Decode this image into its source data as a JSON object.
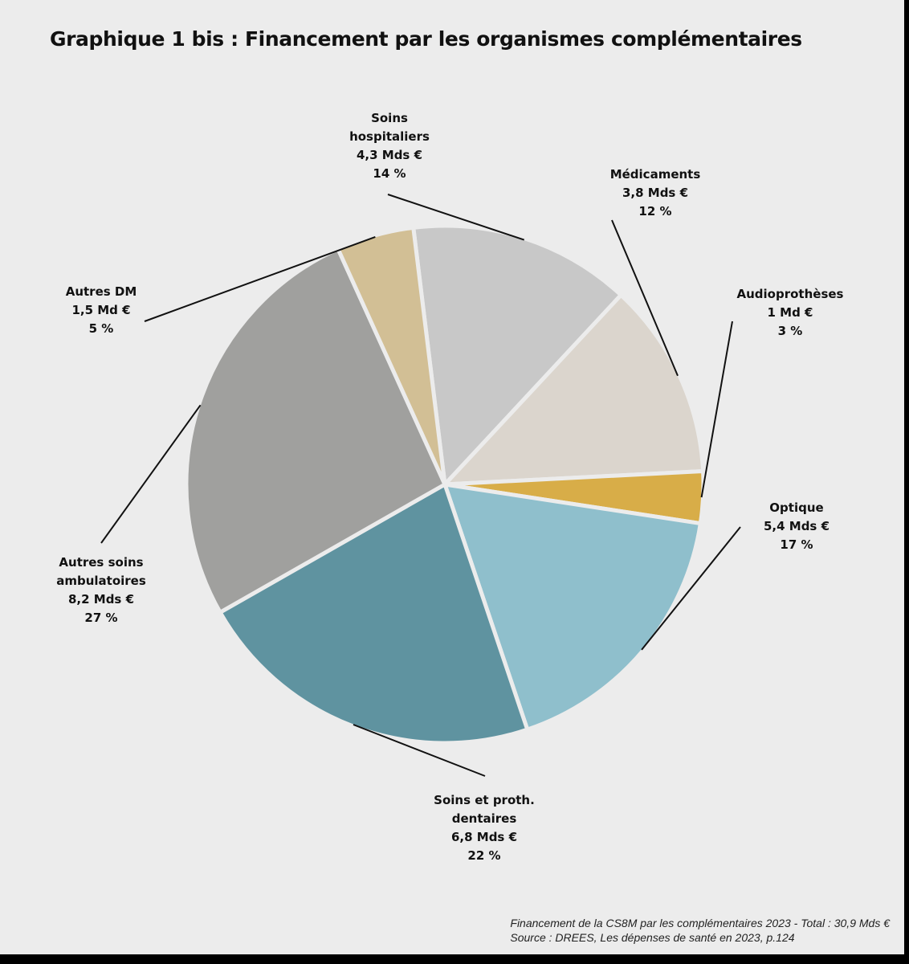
{
  "title": "Graphique 1 bis : Financement par les organismes complémentaires",
  "footnote": {
    "line1": "Financement de la CS8M par les complémentaires 2023 - Total : 30,9 Mds €",
    "line2": "Source : DREES, Les dépenses de santé en 2023, p.124"
  },
  "chart_data": {
    "type": "pie",
    "title": "Graphique 1 bis : Financement par les organismes complémentaires",
    "total": "30,9 Mds €",
    "unit": "Mds €",
    "slices": [
      {
        "label_lines": [
          "Soins",
          "hospitaliers",
          "4,3 Mds €",
          "14 %"
        ],
        "value": 4.3,
        "percent": 14,
        "color": "#c8c8c8"
      },
      {
        "label_lines": [
          "Médicaments",
          "3,8 Mds €",
          "12 %"
        ],
        "value": 3.8,
        "percent": 12,
        "color": "#dbd5cd"
      },
      {
        "label_lines": [
          "Audioprothèses",
          "1 Md €",
          "3 %"
        ],
        "value": 1,
        "percent": 3,
        "color": "#d8ad48"
      },
      {
        "label_lines": [
          "Optique",
          "5,4 Mds €",
          "17 %"
        ],
        "value": 5.4,
        "percent": 17,
        "color": "#8fbfcc"
      },
      {
        "label_lines": [
          "Soins et proth.",
          "dentaires",
          "6,8 Mds €",
          "22 %"
        ],
        "value": 6.8,
        "percent": 22,
        "color": "#5f93a0"
      },
      {
        "label_lines": [
          "Autres soins",
          "ambulatoires",
          "8,2 Mds €",
          "27 %"
        ],
        "value": 8.2,
        "percent": 27,
        "color": "#a0a09e"
      },
      {
        "label_lines": [
          "Autres DM",
          "1,5 Md €",
          "5 %"
        ],
        "value": 1.5,
        "percent": 5,
        "color": "#d2bf95"
      }
    ]
  }
}
